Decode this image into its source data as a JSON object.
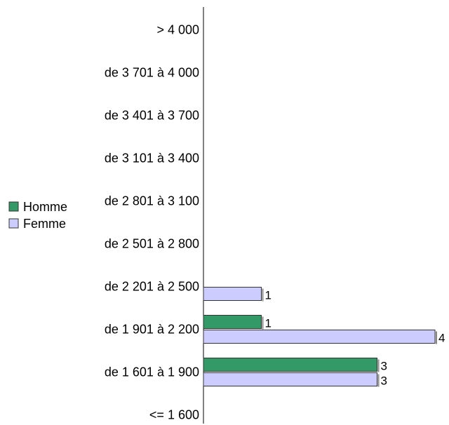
{
  "chart_data": {
    "type": "bar",
    "orientation": "horizontal",
    "categories": [
      "> 4 000",
      "de 3 701 à 4 000",
      "de 3 401 à 3 700",
      "de 3 101 à 3 400",
      "de 2 801 à 3 100",
      "de 2 501 à 2 800",
      "de 2 201 à 2 500",
      "de 1 901 à 2 200",
      "de 1 601 à 1 900",
      "<= 1 600"
    ],
    "series": [
      {
        "name": "Homme",
        "color": "#339966",
        "values": [
          0,
          0,
          0,
          0,
          0,
          0,
          0,
          1,
          3,
          0
        ]
      },
      {
        "name": "Femme",
        "color": "#ccccff",
        "values": [
          0,
          0,
          0,
          0,
          0,
          0,
          1,
          4,
          3,
          0
        ]
      }
    ],
    "xlim": [
      0,
      4
    ],
    "grid": false,
    "legend_position": "left"
  }
}
